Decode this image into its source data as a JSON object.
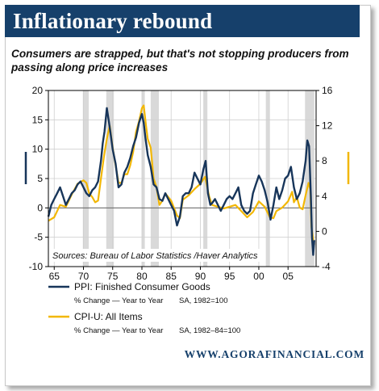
{
  "header": {
    "title": "Inflationary rebound",
    "subtitle": "Consumers are strapped, but that's not stopping producers from passing along price increases"
  },
  "footer": {
    "source_site": "WWW.AGORAFINANCIAL.COM"
  },
  "colors": {
    "title_bg": "#16406b",
    "ppi": "#17355a",
    "cpi": "#f2b705",
    "recession": "#d9d9d9",
    "grid": "#cfcfcf"
  },
  "chart_data": {
    "type": "line",
    "title": "",
    "xlabel": "",
    "xlim": [
      1964.0,
      2009.8
    ],
    "x_ticks": [
      1965,
      1970,
      1975,
      1980,
      1985,
      1990,
      1995,
      2000,
      2005
    ],
    "x_tick_labels": [
      "65",
      "70",
      "75",
      "80",
      "85",
      "90",
      "95",
      "00",
      "05"
    ],
    "left_axis": {
      "lim": [
        -10,
        20
      ],
      "ticks": [
        -10,
        -5,
        0,
        5,
        10,
        15,
        20
      ],
      "tick_labels": [
        "-10",
        "-5",
        "0",
        "5",
        "10",
        "15",
        "20"
      ]
    },
    "right_axis": {
      "lim": [
        -4,
        16
      ],
      "ticks": [
        -4,
        0,
        4,
        8,
        12,
        16
      ],
      "tick_labels": [
        "-4",
        "0",
        "4",
        "8",
        "12",
        "16"
      ]
    },
    "grid": true,
    "recessions": [
      [
        1969.9,
        1970.9
      ],
      [
        1973.9,
        1975.2
      ],
      [
        1980.0,
        1980.5
      ],
      [
        1981.5,
        1982.9
      ],
      [
        1990.5,
        1991.2
      ],
      [
        2001.2,
        2001.9
      ],
      [
        2007.9,
        2009.5
      ]
    ],
    "annotation": "Sources:  Bureau of Labor Statistics /Haver Analytics",
    "legend": [
      {
        "name": "PPI: Finished Consumer Goods",
        "note_left": "% Change — Year to Year",
        "note_right": "SA, 1982=100",
        "color": "#17355a",
        "axis": "left"
      },
      {
        "name": "CPI-U: All Items",
        "note_left": "% Change — Year to Year",
        "note_right": "SA, 1982–84=100",
        "color": "#f2b705",
        "axis": "right"
      }
    ],
    "series": [
      {
        "name": "PPI: Finished Consumer Goods",
        "axis": "left",
        "x": [
          1964,
          1964.5,
          1965,
          1965.5,
          1966,
          1966.5,
          1967,
          1967.5,
          1968,
          1968.5,
          1969,
          1969.5,
          1970,
          1970.5,
          1971,
          1971.5,
          1972,
          1972.5,
          1973,
          1973.3,
          1973.6,
          1974,
          1974.3,
          1974.6,
          1975,
          1975.5,
          1976,
          1976.5,
          1977,
          1977.5,
          1978,
          1978.5,
          1979,
          1979.5,
          1980,
          1980.3,
          1980.6,
          1981,
          1981.5,
          1982,
          1982.5,
          1983,
          1983.5,
          1984,
          1984.5,
          1985,
          1985.5,
          1986,
          1986.5,
          1987,
          1987.5,
          1988,
          1988.5,
          1989,
          1989.5,
          1990,
          1990.5,
          1990.9,
          1991.3,
          1991.7,
          1992,
          1992.5,
          1993,
          1993.5,
          1994,
          1994.5,
          1995,
          1995.5,
          1996,
          1996.5,
          1997,
          1997.5,
          1998,
          1998.5,
          1999,
          1999.5,
          2000,
          2000.5,
          2001,
          2001.5,
          2002,
          2002.5,
          2003,
          2003.5,
          2004,
          2004.5,
          2005,
          2005.5,
          2006,
          2006.5,
          2007,
          2007.5,
          2008,
          2008.3,
          2008.6,
          2008.9,
          2009.1,
          2009.3,
          2009.5
        ],
        "values": [
          -1.5,
          0.5,
          1.5,
          2.5,
          3.5,
          2.0,
          0.5,
          1.5,
          2.5,
          3.0,
          4.0,
          4.5,
          3.5,
          2.5,
          2.0,
          3.0,
          3.5,
          4.5,
          8.0,
          11.0,
          13.0,
          17.0,
          15.0,
          13.0,
          10.0,
          7.5,
          3.5,
          4.0,
          6.0,
          7.0,
          8.5,
          10.5,
          12.0,
          14.5,
          16.0,
          14.5,
          12.0,
          9.0,
          7.0,
          4.0,
          3.5,
          1.5,
          1.2,
          2.5,
          1.5,
          0.5,
          -0.5,
          -3.0,
          -1.5,
          2.0,
          2.5,
          2.5,
          3.5,
          6.0,
          5.0,
          4.0,
          6.5,
          8.0,
          2.5,
          0.5,
          0.8,
          1.5,
          0.5,
          -0.5,
          0.5,
          1.5,
          2.0,
          1.5,
          2.5,
          3.5,
          0.5,
          -0.5,
          -1.0,
          -0.5,
          2.5,
          4.0,
          5.5,
          4.5,
          3.0,
          1.0,
          -2.0,
          0.5,
          3.5,
          1.5,
          3.0,
          5.0,
          5.5,
          7.0,
          3.5,
          1.5,
          2.5,
          4.5,
          8.0,
          11.5,
          10.5,
          2.0,
          -5.0,
          -8.0,
          -5.5
        ]
      },
      {
        "name": "CPI-U: All Items",
        "axis": "right",
        "x": [
          1964,
          1965,
          1966,
          1967,
          1968,
          1969,
          1970,
          1970.5,
          1971,
          1971.5,
          1972,
          1972.5,
          1973,
          1973.5,
          1974,
          1974.5,
          1975,
          1975.5,
          1976,
          1976.5,
          1977,
          1977.5,
          1978,
          1978.5,
          1979,
          1979.5,
          1980,
          1980.3,
          1980.7,
          1981,
          1981.5,
          1982,
          1982.5,
          1983,
          1983.5,
          1984,
          1985,
          1986,
          1986.5,
          1987,
          1988,
          1989,
          1990,
          1990.8,
          1991.5,
          1992,
          1993,
          1994,
          1995,
          1996,
          1997,
          1998,
          1999,
          2000,
          2001,
          2001.9,
          2002.5,
          2003,
          2004,
          2005,
          2005.7,
          2006,
          2006.5,
          2007,
          2007.5,
          2008,
          2008.5,
          2008.8,
          2009,
          2009.3,
          2009.5
        ],
        "values": [
          1.2,
          1.6,
          3.0,
          2.8,
          4.2,
          5.4,
          5.8,
          5.5,
          4.3,
          3.9,
          3.3,
          3.5,
          6.0,
          8.5,
          10.5,
          12.0,
          9.5,
          7.5,
          5.5,
          5.5,
          6.5,
          6.5,
          7.5,
          9.0,
          11.3,
          12.5,
          14.0,
          14.3,
          12.0,
          10.5,
          9.5,
          6.0,
          5.0,
          3.0,
          3.5,
          4.3,
          3.5,
          1.8,
          1.5,
          3.6,
          4.1,
          4.8,
          5.4,
          6.2,
          4.0,
          3.0,
          2.8,
          2.6,
          2.8,
          3.0,
          2.3,
          1.6,
          2.2,
          3.4,
          2.8,
          1.6,
          1.5,
          2.3,
          2.7,
          3.4,
          4.5,
          3.3,
          3.9,
          2.7,
          2.5,
          4.1,
          5.5,
          4.8,
          0.5,
          -1.0,
          -1.5
        ]
      }
    ]
  }
}
